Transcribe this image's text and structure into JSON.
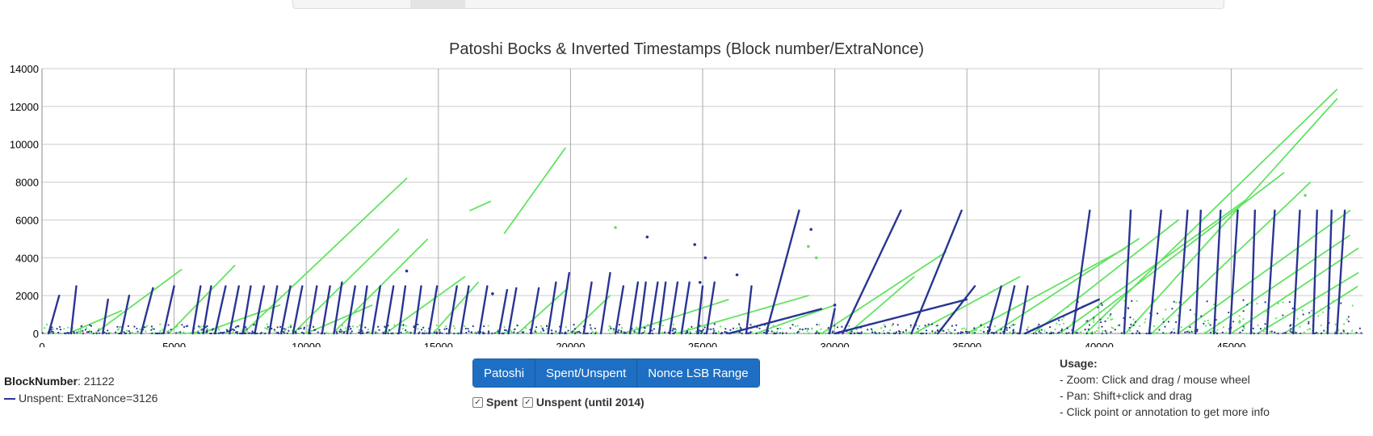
{
  "page": {
    "title": "Patoshi Bocks & Inverted Timestamps (Block number/ExtraNonce)"
  },
  "info": {
    "block_label": "BlockNumber",
    "block_value": ": 21122",
    "legend_text": "Unspent: ExtraNonce=3126"
  },
  "buttons": {
    "patoshi": "Patoshi",
    "spent_unspent": "Spent/Unspent",
    "nonce_lsb": "Nonce LSB Range"
  },
  "checkboxes": {
    "spent_label": "Spent",
    "unspent_label": "Unspent (until 2014)",
    "check_glyph": "✓"
  },
  "usage": {
    "heading": "Usage:",
    "line1": "- Zoom: Click and drag / mouse wheel",
    "line2": "- Pan: Shift+click and drag",
    "line3": "- Click point or annotation to get more info"
  },
  "colors": {
    "unspent": "#283593",
    "spent": "#5ee35e",
    "button": "#1e6fc4",
    "grid": "#cccccc"
  },
  "chart_data": {
    "type": "scatter",
    "title": "Patoshi Bocks & Inverted Timestamps (Block number/ExtraNonce)",
    "xlabel": "",
    "ylabel": "",
    "xlim": [
      0,
      50000
    ],
    "ylim": [
      0,
      14000
    ],
    "x_ticks": [
      0,
      5000,
      10000,
      15000,
      20000,
      25000,
      30000,
      35000,
      40000,
      45000
    ],
    "y_ticks": [
      0,
      2000,
      4000,
      6000,
      8000,
      10000,
      12000,
      14000
    ],
    "grid": true,
    "series": [
      {
        "name": "Unspent",
        "color": "#283593",
        "segments": [
          [
            [
              250,
              0
            ],
            [
              650,
              2000
            ]
          ],
          [
            [
              1100,
              0
            ],
            [
              1300,
              2500
            ]
          ],
          [
            [
              2300,
              0
            ],
            [
              2500,
              1800
            ]
          ],
          [
            [
              3000,
              0
            ],
            [
              3300,
              2000
            ]
          ],
          [
            [
              3750,
              0
            ],
            [
              4200,
              2400
            ]
          ],
          [
            [
              4600,
              0
            ],
            [
              5000,
              2500
            ]
          ],
          [
            [
              5700,
              0
            ],
            [
              6000,
              2500
            ]
          ],
          [
            [
              6100,
              0
            ],
            [
              6400,
              2500
            ]
          ],
          [
            [
              6550,
              0
            ],
            [
              6950,
              2500
            ]
          ],
          [
            [
              7100,
              0
            ],
            [
              7450,
              2500
            ]
          ],
          [
            [
              7600,
              0
            ],
            [
              7900,
              2500
            ]
          ],
          [
            [
              8050,
              0
            ],
            [
              8400,
              2500
            ]
          ],
          [
            [
              8600,
              0
            ],
            [
              8900,
              2500
            ]
          ],
          [
            [
              9050,
              0
            ],
            [
              9400,
              2500
            ]
          ],
          [
            [
              9500,
              0
            ],
            [
              9850,
              2500
            ]
          ],
          [
            [
              10100,
              0
            ],
            [
              10400,
              2500
            ]
          ],
          [
            [
              10600,
              0
            ],
            [
              10900,
              2500
            ]
          ],
          [
            [
              11050,
              0
            ],
            [
              11350,
              2700
            ]
          ],
          [
            [
              11550,
              0
            ],
            [
              11850,
              2500
            ]
          ],
          [
            [
              12050,
              0
            ],
            [
              12300,
              2500
            ]
          ],
          [
            [
              12500,
              0
            ],
            [
              12800,
              2500
            ]
          ],
          [
            [
              13000,
              0
            ],
            [
              13300,
              2500
            ]
          ],
          [
            [
              13500,
              0
            ],
            [
              13750,
              2500
            ]
          ],
          [
            [
              14100,
              0
            ],
            [
              14350,
              2500
            ]
          ],
          [
            [
              14650,
              0
            ],
            [
              14950,
              2500
            ]
          ],
          [
            [
              15400,
              0
            ],
            [
              15700,
              2500
            ]
          ],
          [
            [
              15850,
              0
            ],
            [
              16150,
              2500
            ]
          ],
          [
            [
              16550,
              0
            ],
            [
              16850,
              2500
            ]
          ],
          [
            [
              17300,
              0
            ],
            [
              17600,
              2300
            ]
          ],
          [
            [
              17650,
              0
            ],
            [
              17950,
              2400
            ]
          ],
          [
            [
              18500,
              0
            ],
            [
              18800,
              2400
            ]
          ],
          [
            [
              19150,
              0
            ],
            [
              19450,
              2700
            ]
          ],
          [
            [
              19600,
              0
            ],
            [
              19950,
              3200
            ]
          ],
          [
            [
              20500,
              0
            ],
            [
              20800,
              2700
            ]
          ],
          [
            [
              21150,
              0
            ],
            [
              21500,
              3200
            ]
          ],
          [
            [
              21700,
              0
            ],
            [
              22000,
              2500
            ]
          ],
          [
            [
              22250,
              0
            ],
            [
              22550,
              2700
            ]
          ],
          [
            [
              22600,
              0
            ],
            [
              22850,
              2700
            ]
          ],
          [
            [
              23000,
              0
            ],
            [
              23300,
              2700
            ]
          ],
          [
            [
              23350,
              0
            ],
            [
              23600,
              2700
            ]
          ],
          [
            [
              23750,
              0
            ],
            [
              24050,
              2700
            ]
          ],
          [
            [
              24200,
              0
            ],
            [
              24500,
              2700
            ]
          ],
          [
            [
              24800,
              0
            ],
            [
              25000,
              2500
            ]
          ],
          [
            [
              25150,
              0
            ],
            [
              25450,
              2700
            ]
          ],
          [
            [
              26650,
              0
            ],
            [
              26850,
              2500
            ]
          ],
          [
            [
              27400,
              0
            ],
            [
              28650,
              6500
            ]
          ],
          [
            [
              29800,
              0
            ],
            [
              30000,
              1300
            ]
          ],
          [
            [
              30300,
              0
            ],
            [
              32500,
              6500
            ]
          ],
          [
            [
              32900,
              0
            ],
            [
              34800,
              6500
            ]
          ],
          [
            [
              33900,
              0
            ],
            [
              35300,
              2500
            ]
          ],
          [
            [
              35800,
              0
            ],
            [
              36300,
              2500
            ]
          ],
          [
            [
              36400,
              0
            ],
            [
              36800,
              2500
            ]
          ],
          [
            [
              37000,
              0
            ],
            [
              37300,
              2500
            ]
          ],
          [
            [
              39000,
              0
            ],
            [
              39650,
              6500
            ]
          ],
          [
            [
              40950,
              0
            ],
            [
              41200,
              6500
            ]
          ],
          [
            [
              41900,
              0
            ],
            [
              42350,
              6500
            ]
          ],
          [
            [
              43000,
              0
            ],
            [
              43350,
              6500
            ]
          ],
          [
            [
              43650,
              0
            ],
            [
              43850,
              6500
            ]
          ],
          [
            [
              44350,
              0
            ],
            [
              44600,
              6500
            ]
          ],
          [
            [
              44950,
              0
            ],
            [
              45250,
              6500
            ]
          ],
          [
            [
              45750,
              0
            ],
            [
              45900,
              6500
            ]
          ],
          [
            [
              46350,
              0
            ],
            [
              46650,
              6500
            ]
          ],
          [
            [
              47350,
              0
            ],
            [
              47600,
              6500
            ]
          ],
          [
            [
              48100,
              0
            ],
            [
              48250,
              6500
            ]
          ],
          [
            [
              48650,
              0
            ],
            [
              48800,
              6500
            ]
          ],
          [
            [
              49000,
              0
            ],
            [
              49300,
              6500
            ]
          ],
          [
            [
              30000,
              0
            ],
            [
              35000,
              1800
            ]
          ],
          [
            [
              26000,
              0
            ],
            [
              29500,
              1300
            ]
          ],
          [
            [
              37200,
              0
            ],
            [
              40000,
              1800
            ]
          ]
        ],
        "points": [
          [
            13800,
            3300
          ],
          [
            17050,
            2100
          ],
          [
            22900,
            5100
          ],
          [
            24700,
            4700
          ],
          [
            25100,
            4000
          ],
          [
            24900,
            2700
          ],
          [
            26300,
            3100
          ],
          [
            29100,
            5500
          ],
          [
            30000,
            1500
          ]
        ]
      },
      {
        "name": "Spent",
        "color": "#5ee35e",
        "segments": [
          [
            [
              2000,
              0
            ],
            [
              5300,
              3400
            ]
          ],
          [
            [
              4800,
              0
            ],
            [
              7300,
              3600
            ]
          ],
          [
            [
              7600,
              0
            ],
            [
              13800,
              8200
            ]
          ],
          [
            [
              9500,
              0
            ],
            [
              13500,
              5500
            ]
          ],
          [
            [
              11000,
              0
            ],
            [
              14600,
              5000
            ]
          ],
          [
            [
              13000,
              0
            ],
            [
              16000,
              3000
            ]
          ],
          [
            [
              14800,
              0
            ],
            [
              16500,
              2700
            ]
          ],
          [
            [
              17500,
              5300
            ],
            [
              19800,
              9800
            ]
          ],
          [
            [
              16200,
              6500
            ],
            [
              17000,
              7000
            ]
          ],
          [
            [
              18000,
              0
            ],
            [
              19900,
              2400
            ]
          ],
          [
            [
              20000,
              0
            ],
            [
              21500,
              2000
            ]
          ],
          [
            [
              29500,
              0
            ],
            [
              34200,
              4300
            ]
          ],
          [
            [
              30500,
              0
            ],
            [
              33000,
              3000
            ]
          ],
          [
            [
              33000,
              0
            ],
            [
              37000,
              3000
            ]
          ],
          [
            [
              35000,
              0
            ],
            [
              41000,
              4500
            ]
          ],
          [
            [
              36000,
              0
            ],
            [
              41500,
              5000
            ]
          ],
          [
            [
              37500,
              0
            ],
            [
              43000,
              6000
            ]
          ],
          [
            [
              38500,
              0
            ],
            [
              45500,
              7000
            ]
          ],
          [
            [
              39000,
              0
            ],
            [
              47000,
              8500
            ]
          ],
          [
            [
              39500,
              0
            ],
            [
              49000,
              12900
            ]
          ],
          [
            [
              41000,
              0
            ],
            [
              49000,
              12400
            ]
          ],
          [
            [
              42000,
              0
            ],
            [
              48000,
              8000
            ]
          ],
          [
            [
              43000,
              0
            ],
            [
              49500,
              6500
            ]
          ],
          [
            [
              44000,
              0
            ],
            [
              49500,
              5200
            ]
          ],
          [
            [
              45000,
              0
            ],
            [
              49800,
              4500
            ]
          ],
          [
            [
              46000,
              0
            ],
            [
              49800,
              3200
            ]
          ],
          [
            [
              47000,
              0
            ],
            [
              49800,
              2500
            ]
          ],
          [
            [
              24000,
              0
            ],
            [
              29000,
              2000
            ]
          ],
          [
            [
              22000,
              0
            ],
            [
              26000,
              1800
            ]
          ],
          [
            [
              27000,
              0
            ],
            [
              30000,
              1500
            ]
          ],
          [
            [
              1000,
              0
            ],
            [
              3000,
              1200
            ]
          ],
          [
            [
              6000,
              0
            ],
            [
              9000,
              1500
            ]
          ],
          [
            [
              10000,
              0
            ],
            [
              12500,
              1500
            ]
          ]
        ],
        "points": [
          [
            21700,
            5600
          ],
          [
            29000,
            4600
          ],
          [
            29300,
            4000
          ],
          [
            47800,
            7300
          ]
        ]
      }
    ]
  }
}
